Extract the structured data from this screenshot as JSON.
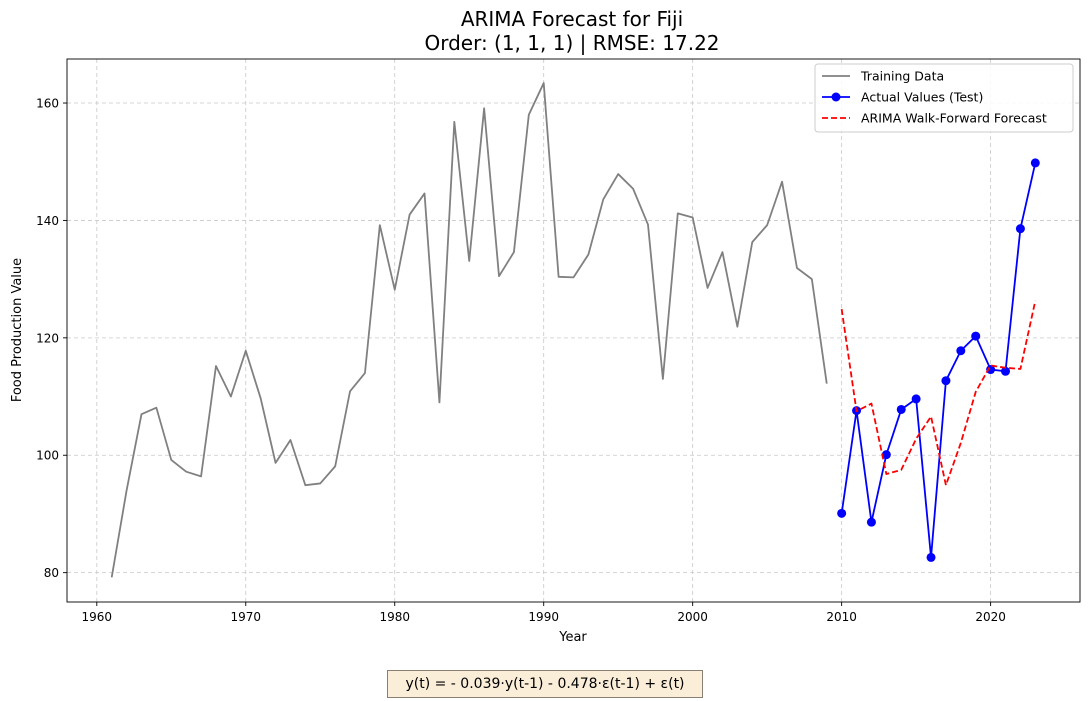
{
  "chart_data": {
    "type": "line",
    "title_line1": "ARIMA Forecast for Fiji",
    "title_line2": "Order: (1, 1, 1) | RMSE: 17.22",
    "xlabel": "Year",
    "ylabel": "Food Production Value",
    "xlim": [
      1958,
      2026
    ],
    "ylim": [
      75,
      167.5
    ],
    "xticks": [
      1960,
      1970,
      1980,
      1990,
      2000,
      2010,
      2020
    ],
    "yticks": [
      80,
      100,
      120,
      140,
      160
    ],
    "grid": true,
    "legend_position": "top-right",
    "series": [
      {
        "name": "Training Data",
        "color": "#808080",
        "style": "solid",
        "marker": "none",
        "x": [
          1961,
          1962,
          1963,
          1964,
          1965,
          1966,
          1967,
          1968,
          1969,
          1970,
          1971,
          1972,
          1973,
          1974,
          1975,
          1976,
          1977,
          1978,
          1979,
          1980,
          1981,
          1982,
          1983,
          1984,
          1985,
          1986,
          1987,
          1988,
          1989,
          1990,
          1991,
          1992,
          1993,
          1994,
          1995,
          1996,
          1997,
          1998,
          1999,
          2000,
          2001,
          2002,
          2003,
          2004,
          2005,
          2006,
          2007,
          2008,
          2009
        ],
        "y": [
          79.2,
          94.0,
          107.0,
          108.1,
          99.2,
          97.2,
          96.4,
          115.2,
          110.0,
          117.8,
          109.7,
          98.7,
          102.6,
          94.9,
          95.2,
          98.1,
          110.9,
          114.0,
          139.2,
          128.2,
          141.0,
          144.6,
          109.0,
          156.8,
          133.1,
          159.1,
          130.5,
          134.6,
          158.0,
          163.4,
          130.4,
          130.3,
          134.2,
          143.6,
          147.9,
          145.4,
          139.3,
          113.0,
          141.2,
          140.5,
          128.5,
          134.6,
          121.9,
          136.3,
          139.2,
          146.6,
          131.9,
          130.0,
          112.2
        ]
      },
      {
        "name": "Actual Values (Test)",
        "color": "#0000ff",
        "style": "solid",
        "marker": "circle",
        "x": [
          2010,
          2011,
          2012,
          2013,
          2014,
          2015,
          2016,
          2017,
          2018,
          2019,
          2020,
          2021,
          2022,
          2023
        ],
        "y": [
          90.1,
          107.6,
          88.6,
          100.1,
          107.8,
          109.6,
          82.6,
          112.7,
          117.8,
          120.3,
          114.6,
          114.3,
          138.6,
          149.8
        ]
      },
      {
        "name": "ARIMA Walk-Forward Forecast",
        "color": "#ff0000",
        "style": "dashed",
        "marker": "none",
        "x": [
          2010,
          2011,
          2012,
          2013,
          2014,
          2015,
          2016,
          2017,
          2018,
          2019,
          2020,
          2021,
          2022,
          2023
        ],
        "y": [
          124.9,
          107.5,
          108.8,
          96.8,
          97.5,
          102.8,
          106.6,
          94.9,
          102.1,
          110.8,
          115.3,
          114.9,
          114.7,
          126.3
        ]
      }
    ]
  },
  "equation": "y(t) = - 0.039·y(t-1) - 0.478·ε(t-1) + ε(t)"
}
